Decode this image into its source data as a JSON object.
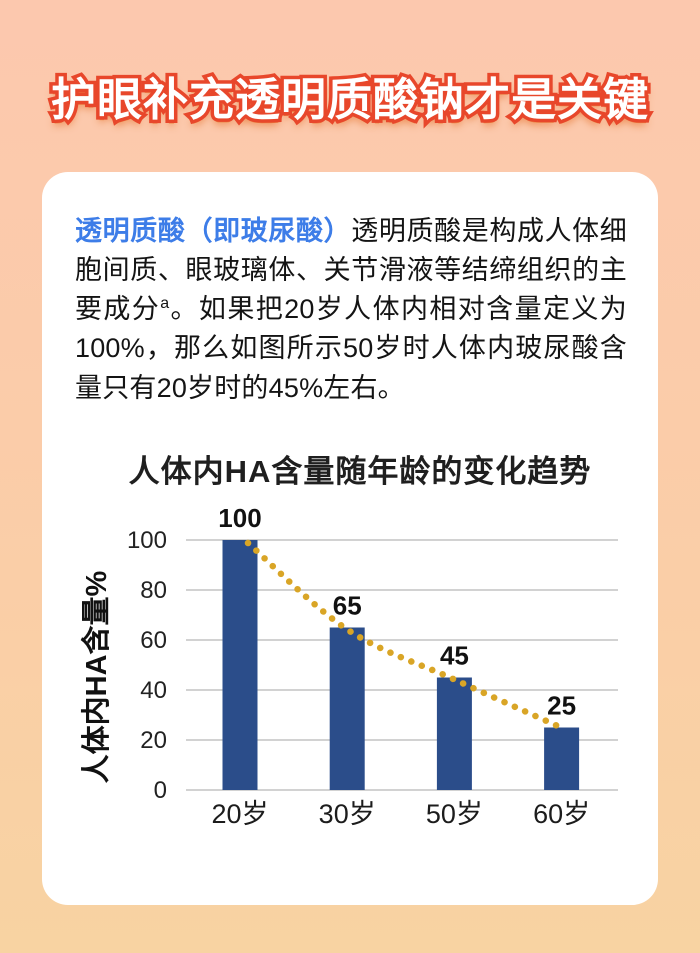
{
  "page": {
    "title": "护眼补充透明质酸钠才是关键"
  },
  "card": {
    "intro": {
      "lead": "透明质酸（即玻尿酸）",
      "body_before_sup": "透明质酸是构成人体细胞间质、眼玻璃体、关节滑液等结缔组织的主要成分",
      "sup": "a",
      "body_after_sup": "。如果把20岁人体内相对含量定义为100%，那么如图所示50岁时人体内玻尿酸含量只有20岁时的45%左右。"
    }
  },
  "chart_data": {
    "type": "bar",
    "title": "人体内HA含量随年龄的变化趋势",
    "categories": [
      "20岁",
      "30岁",
      "50岁",
      "60岁"
    ],
    "values": [
      100,
      65,
      45,
      25
    ],
    "data_labels": [
      "100",
      "65",
      "45",
      "25"
    ],
    "xlabel": "",
    "ylabel": "人体内HA含量%",
    "yticks": [
      0,
      20,
      40,
      60,
      80,
      100
    ],
    "ylim": [
      0,
      100
    ],
    "grid": true,
    "legend": "none",
    "trendline": "gold dotted curve declining through the tops of the bars"
  },
  "colors": {
    "background_top": "#fcc8ae",
    "background_bottom": "#f8d3a2",
    "card_background": "#ffffff",
    "title_fill": "#ffffff",
    "title_outline": "#e8472b",
    "title_shadow": "#ef8b4a",
    "lead_text": "#3d7de8",
    "body_text": "#141414",
    "bar_fill": "#2b4d8a",
    "trend_dots": "#d9a526",
    "grid_line": "#c3c3c3",
    "axis_text": "#222222"
  }
}
